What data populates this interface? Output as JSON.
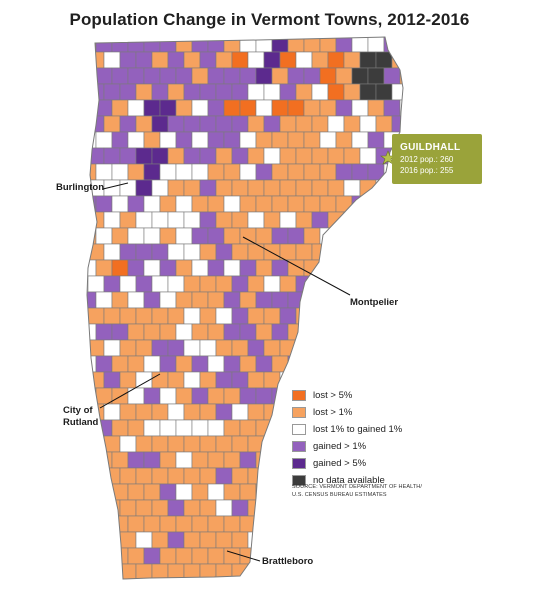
{
  "title": "Population Change in Vermont Towns, 2012-2016",
  "colors": {
    "lost_gt_5": "#f26f21",
    "lost_gt_1": "#f6a25f",
    "neutral": "#ffffff",
    "gained_gt_1": "#9361bd",
    "gained_gt_5": "#5c2a8e",
    "no_data": "#3c3c3c",
    "border": "#7a7a7a",
    "callout_bg": "#9aa33a"
  },
  "legend": [
    {
      "label": "lost > 5%",
      "color": "#f26f21"
    },
    {
      "label": "lost > 1%",
      "color": "#f6a25f"
    },
    {
      "label": "lost 1% to gained 1%",
      "color": "#ffffff"
    },
    {
      "label": "gained > 1%",
      "color": "#9361bd"
    },
    {
      "label": "gained > 5%",
      "color": "#5c2a8e"
    },
    {
      "label": "no data available",
      "color": "#3c3c3c"
    }
  ],
  "source": {
    "line1": "SOURCE: VERMONT DEPARTMENT OF HEALTH/",
    "line2": "U.S. CENSUS BUREAU ESTIMATES"
  },
  "callout": {
    "town": "GUILDHALL",
    "pop2012": "2012 pop.: 260",
    "pop2016": "2016 pop.: 255"
  },
  "cities": {
    "burlington": "Burlington",
    "montpelier": "Montpelier",
    "rutland_line1": "City of",
    "rutland_line2": "Rutland",
    "brattleboro": "Brattleboro"
  }
}
